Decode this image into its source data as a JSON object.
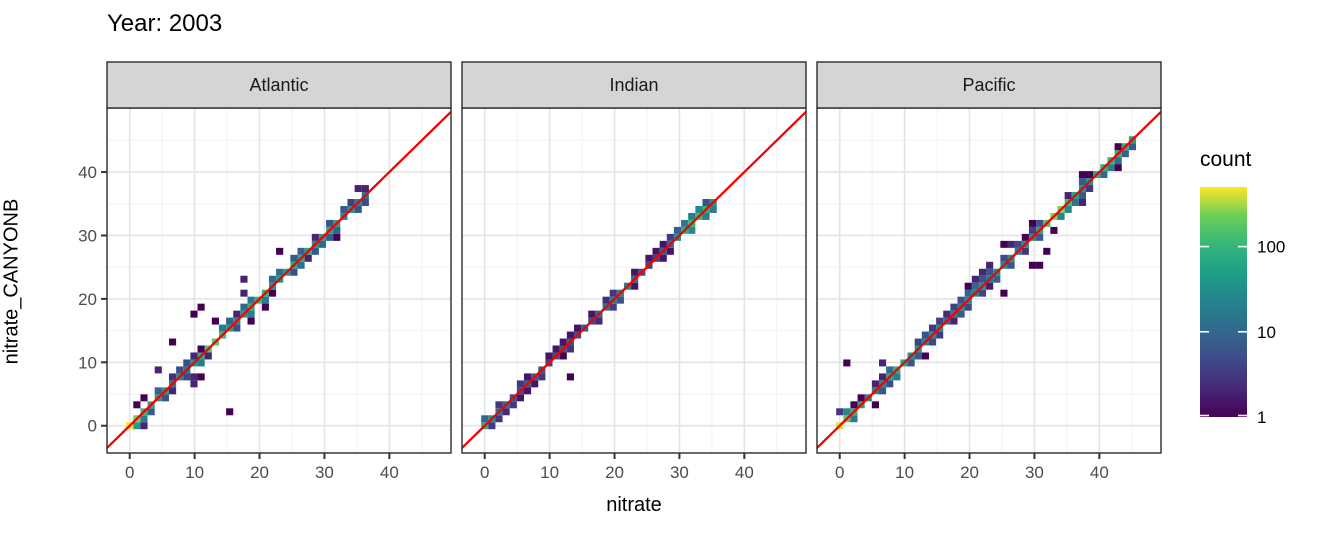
{
  "title": "Year: 2003",
  "chart_data": {
    "type": "bin2d",
    "title": "Year: 2003",
    "xlabel": "nitrate",
    "ylabel": "nitrate_CANYONB",
    "x_domain": [
      -3.5,
      49.5
    ],
    "y_domain": [
      -4.3,
      50.1
    ],
    "major_ticks": [
      0,
      10,
      20,
      30,
      40
    ],
    "minor_ticks": [
      5,
      15,
      25,
      35,
      45
    ],
    "bin_size": 1.1,
    "identity_line": {
      "slope": 1,
      "intercept": 0,
      "color": "#F40000"
    },
    "legend": {
      "title": "count",
      "ticks": [
        100,
        10,
        1
      ],
      "max_count": 500,
      "scale": "log10",
      "position": "right"
    },
    "colors": {
      "viridis_stops": [
        "#440154",
        "#482878",
        "#3E4A89",
        "#31688E",
        "#26828E",
        "#1F9E89",
        "#35B779",
        "#6DCD59",
        "#FDE725"
      ],
      "grid_major": "#E4E4E4",
      "grid_minor": "#F2F2F2",
      "panel_bg": "#FFFFFF",
      "panel_border": "#2B2B2B",
      "strip_fill": "#D5D5D5",
      "strip_border": "#2B2B2B",
      "tick_mark": "#333333",
      "tick_label": "#4D4D4D",
      "legend_tick": "#FFFFFF"
    },
    "facets": [
      {
        "label": "Atlantic",
        "seed": 11,
        "max": 37.4,
        "band_sd": 1.35,
        "scatter_density": 1.7,
        "base": 25,
        "origin_count": 480,
        "origin_tau": 1.3,
        "spikes": [
          {
            "x": 13,
            "count": 170
          },
          {
            "x": 20,
            "count": 80
          },
          {
            "x": 26,
            "count": 55
          },
          {
            "x": 31,
            "count": 40
          }
        ],
        "outliers": [
          {
            "x": 15.5,
            "y": 2
          },
          {
            "x": 9.6,
            "y": 17.1
          },
          {
            "x": 11.4,
            "y": 18.2
          },
          {
            "x": 6.2,
            "y": 13.2
          }
        ]
      },
      {
        "label": "Indian",
        "seed": 22,
        "max": 35.4,
        "band_sd": 0.55,
        "scatter_density": 0.55,
        "base": 7,
        "origin_count": 70,
        "origin_tau": 1.2,
        "spikes": [
          {
            "x": 31.5,
            "count": 55
          },
          {
            "x": 33.2,
            "count": 85
          },
          {
            "x": 21,
            "count": 20
          }
        ],
        "outliers": [
          {
            "x": 12.8,
            "y": 8.2
          }
        ]
      },
      {
        "label": "Pacific",
        "seed": 33,
        "max": 45.8,
        "band_sd": 1.05,
        "scatter_density": 1.4,
        "base": 25,
        "origin_count": 420,
        "origin_tau": 1.2,
        "spikes": [
          {
            "x": 33.5,
            "count": 260
          },
          {
            "x": 9,
            "count": 60
          },
          {
            "x": 41,
            "count": 70
          },
          {
            "x": 44,
            "count": 45
          }
        ],
        "bulge": {
          "x_min": 19,
          "x_max": 23.5,
          "count": 6
        },
        "outliers": [
          {
            "x": 0.6,
            "y": 10
          },
          {
            "x": 29.8,
            "y": 24.8
          },
          {
            "x": 30.9,
            "y": 24.8
          },
          {
            "x": 31.9,
            "y": 27.7
          },
          {
            "x": 24.9,
            "y": 20.6
          }
        ]
      }
    ]
  }
}
